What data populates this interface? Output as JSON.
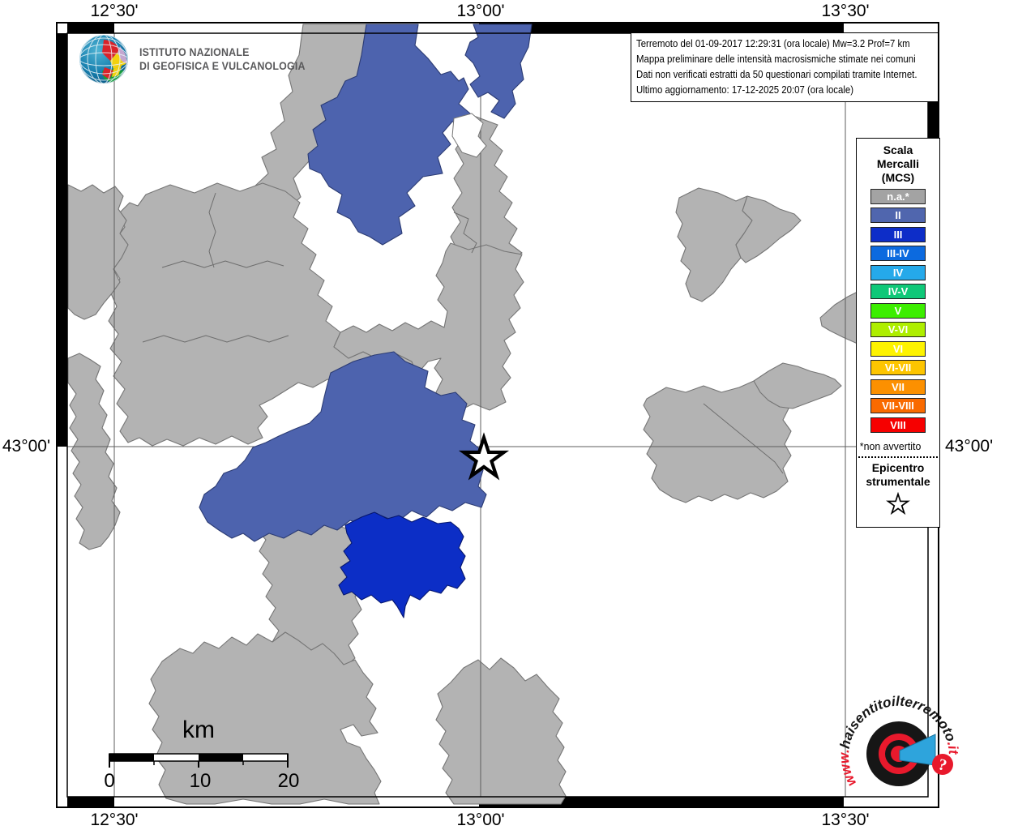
{
  "axis": {
    "top": [
      "12°30'",
      "13°00'",
      "13°30'"
    ],
    "bottom": [
      "12°30'",
      "13°00'",
      "13°30'"
    ],
    "left": "43°00'",
    "right": "43°00'"
  },
  "info_box": {
    "line1": "Terremoto del 01-09-2017 12:29:31 (ora locale) Mw=3.2 Prof=7 km",
    "line2": "Mappa preliminare delle intensità macrosismiche stimate nei comuni",
    "line3": "Dati non verificati estratti da 50 questionari compilati tramite Internet.",
    "line4": "Ultimo aggiornamento: 17-12-2025 20:07 (ora locale)"
  },
  "ingv_logo": {
    "line1": "ISTITUTO NAZIONALE",
    "line2": "DI GEOFISICA E VULCANOLOGIA"
  },
  "legend": {
    "title_lines": [
      "Scala",
      "Mercalli",
      "(MCS)"
    ],
    "items": [
      {
        "label": "n.a.*",
        "color": "#a3a3a3"
      },
      {
        "label": "II",
        "color": "#5066ae"
      },
      {
        "label": "III",
        "color": "#0d2dc8"
      },
      {
        "label": "III-IV",
        "color": "#0c6adf"
      },
      {
        "label": "IV",
        "color": "#25a9ea"
      },
      {
        "label": "IV-V",
        "color": "#0fc878"
      },
      {
        "label": "V",
        "color": "#3cee00"
      },
      {
        "label": "V-VI",
        "color": "#aeee00"
      },
      {
        "label": "VI",
        "color": "#fdf300"
      },
      {
        "label": "VI-VII",
        "color": "#fdc500"
      },
      {
        "label": "VII",
        "color": "#fc9000"
      },
      {
        "label": "VII-VIII",
        "color": "#f96a00"
      },
      {
        "label": "VIII",
        "color": "#f60000"
      }
    ],
    "footnote": "*non avvertito",
    "epicenter_line1": "Epicentro",
    "epicenter_line2": "strumentale"
  },
  "scalebar": {
    "unit": "km",
    "ticks": [
      "0",
      "10",
      "20"
    ]
  },
  "watermark": {
    "url_prefix": "www.",
    "url_main": "haisentitoilterremoto",
    "url_suffix": ".it",
    "question_mark": "?"
  },
  "map": {
    "intensity_colors": {
      "II": "#4d63ae",
      "III": "#0c2ec6",
      "not_felt": "#b3b3b3"
    },
    "epicenter_symbol": "star"
  }
}
